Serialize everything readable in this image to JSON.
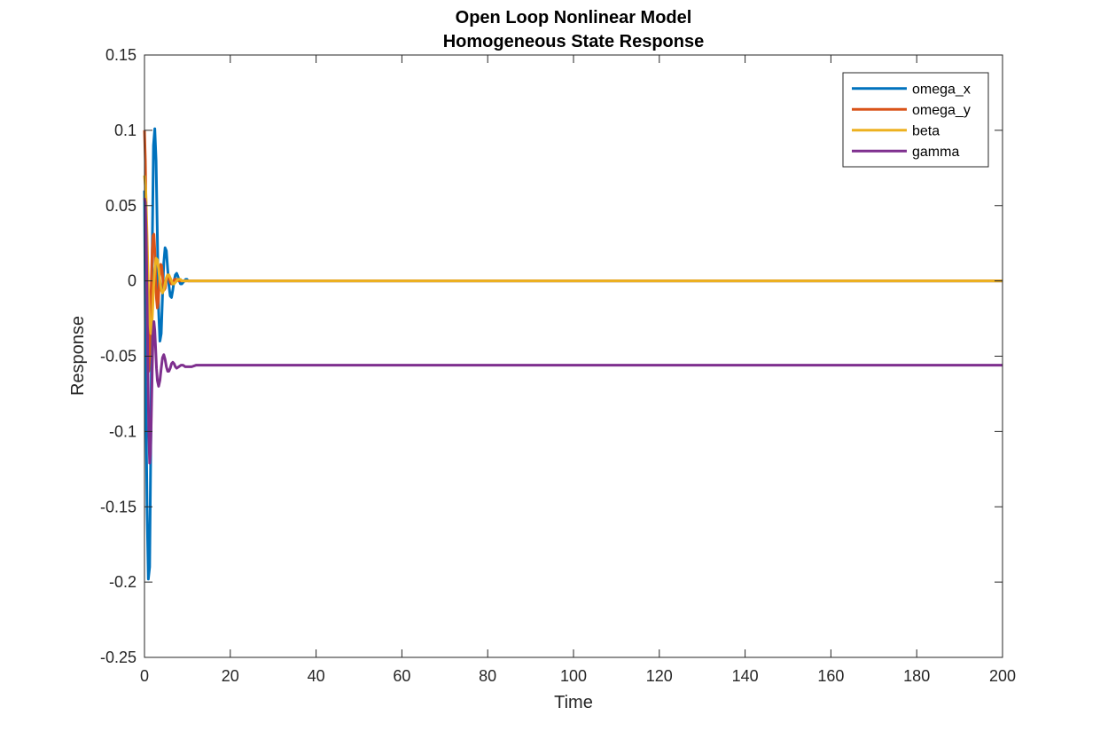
{
  "chart_data": {
    "type": "line",
    "title": [
      "Open Loop Nonlinear Model",
      "Homogeneous State Response"
    ],
    "xlabel": "Time",
    "ylabel": "Response",
    "xlim": [
      0,
      200
    ],
    "ylim": [
      -0.25,
      0.15
    ],
    "xticks": [
      0,
      20,
      40,
      60,
      80,
      100,
      120,
      140,
      160,
      180,
      200
    ],
    "yticks": [
      0.15,
      0.1,
      0.05,
      0,
      -0.05,
      -0.1,
      -0.15,
      -0.2,
      -0.25
    ],
    "xtick_labels": [
      "0",
      "20",
      "40",
      "60",
      "80",
      "100",
      "120",
      "140",
      "160",
      "180",
      "200"
    ],
    "ytick_labels": [
      "0.15",
      "0.1",
      "0.05",
      "0",
      "-0.05",
      "-0.1",
      "-0.15",
      "-0.2",
      "-0.25"
    ],
    "grid": false,
    "legend_position": "top-right",
    "series": [
      {
        "name": "omega_x",
        "color": "#0072BD",
        "x": [
          0,
          0.3,
          0.6,
          0.9,
          1.2,
          1.5,
          1.8,
          2.1,
          2.4,
          2.7,
          3.0,
          3.3,
          3.6,
          3.9,
          4.2,
          4.5,
          4.8,
          5.1,
          5.4,
          5.7,
          6.0,
          6.3,
          6.6,
          6.9,
          7.2,
          7.5,
          7.8,
          8.1,
          8.4,
          8.7,
          9.0,
          9.3,
          9.6,
          9.9,
          10.2,
          10.5,
          10.8,
          11.1,
          11.4,
          11.7,
          12.0,
          13.0,
          14.0,
          16.0,
          20.0,
          200.0
        ],
        "y": [
          0.06,
          -0.07,
          -0.15,
          -0.198,
          -0.19,
          -0.1,
          0.02,
          0.09,
          0.101,
          0.08,
          0.03,
          -0.02,
          -0.04,
          -0.035,
          -0.01,
          0.012,
          0.022,
          0.02,
          0.008,
          -0.003,
          -0.01,
          -0.011,
          -0.006,
          0.0,
          0.004,
          0.005,
          0.003,
          0.0,
          -0.002,
          -0.002,
          -0.001,
          0.0,
          0.001,
          0.001,
          0.0,
          0.0,
          0.0,
          0.0,
          0.0,
          0.0,
          0.0,
          0.0,
          0.0,
          0.0,
          0.0,
          0.0
        ]
      },
      {
        "name": "omega_y",
        "color": "#D95319",
        "x": [
          0,
          0.2,
          0.4,
          0.6,
          0.8,
          1.0,
          1.2,
          1.4,
          1.6,
          1.8,
          2.0,
          2.2,
          2.4,
          2.6,
          2.8,
          3.0,
          3.2,
          3.4,
          3.6,
          3.8,
          4.0,
          4.2,
          4.4,
          4.6,
          4.8,
          5.0,
          5.2,
          5.4,
          5.6,
          5.8,
          6.0,
          6.2,
          6.4,
          6.6,
          6.8,
          7.0,
          7.5,
          8.0,
          8.5,
          9.0,
          9.5,
          10.0,
          11.0,
          12.0,
          14.0,
          200.0
        ],
        "y": [
          0.1,
          0.08,
          0.04,
          -0.01,
          -0.045,
          -0.06,
          -0.05,
          -0.025,
          0.0,
          0.02,
          0.03,
          0.031,
          0.02,
          0.002,
          -0.012,
          -0.018,
          -0.014,
          -0.004,
          0.006,
          0.011,
          0.01,
          0.004,
          -0.003,
          -0.006,
          -0.005,
          -0.001,
          0.002,
          0.004,
          0.003,
          0.001,
          -0.001,
          -0.002,
          -0.002,
          -0.001,
          0.0,
          0.001,
          0.001,
          0.0,
          0.0,
          0.0,
          0.0,
          0.0,
          0.0,
          0.0,
          0.0,
          0.0
        ]
      },
      {
        "name": "beta",
        "color": "#EDB120",
        "x": [
          0,
          0.3,
          0.6,
          0.9,
          1.2,
          1.5,
          1.8,
          2.1,
          2.4,
          2.7,
          3.0,
          3.3,
          3.6,
          3.9,
          4.2,
          4.5,
          4.8,
          5.1,
          5.4,
          5.7,
          6.0,
          6.3,
          6.6,
          6.9,
          7.2,
          7.5,
          7.8,
          8.1,
          8.4,
          8.7,
          9.0,
          9.5,
          10.0,
          11.0,
          12.0,
          13.0,
          14.0,
          15.0,
          16.0,
          18.0,
          20.0,
          200.0
        ],
        "y": [
          0.07,
          0.06,
          0.03,
          -0.005,
          -0.028,
          -0.035,
          -0.025,
          -0.006,
          0.008,
          0.015,
          0.014,
          0.008,
          0.0,
          -0.006,
          -0.008,
          -0.006,
          -0.002,
          0.002,
          0.004,
          0.004,
          0.002,
          0.0,
          -0.002,
          -0.002,
          -0.001,
          0.0,
          0.001,
          0.001,
          0.001,
          0.0,
          0.0,
          0.0,
          0.0,
          0.0,
          0.0,
          0.0,
          0.0,
          0.0,
          0.0,
          0.0,
          0.0,
          0.0
        ]
      },
      {
        "name": "gamma",
        "color": "#7E2F8E",
        "x": [
          0,
          0.2,
          0.4,
          0.6,
          0.8,
          1.0,
          1.2,
          1.4,
          1.6,
          1.8,
          2.0,
          2.2,
          2.4,
          2.6,
          2.8,
          3.0,
          3.3,
          3.6,
          3.9,
          4.2,
          4.5,
          4.8,
          5.1,
          5.4,
          5.7,
          6.0,
          6.3,
          6.6,
          6.9,
          7.2,
          7.5,
          8.0,
          8.5,
          9.0,
          9.5,
          10.0,
          11.0,
          12.0,
          14.0,
          16.0,
          20.0,
          40.0,
          80.0,
          120.0,
          160.0,
          200.0
        ],
        "y": [
          0.055,
          0.052,
          0.03,
          -0.01,
          -0.06,
          -0.1,
          -0.121,
          -0.115,
          -0.09,
          -0.06,
          -0.035,
          -0.027,
          -0.033,
          -0.045,
          -0.058,
          -0.066,
          -0.07,
          -0.066,
          -0.058,
          -0.051,
          -0.049,
          -0.052,
          -0.057,
          -0.06,
          -0.06,
          -0.058,
          -0.055,
          -0.054,
          -0.055,
          -0.057,
          -0.058,
          -0.057,
          -0.056,
          -0.056,
          -0.057,
          -0.057,
          -0.057,
          -0.056,
          -0.056,
          -0.056,
          -0.056,
          -0.056,
          -0.056,
          -0.056,
          -0.056,
          -0.056
        ]
      }
    ]
  }
}
